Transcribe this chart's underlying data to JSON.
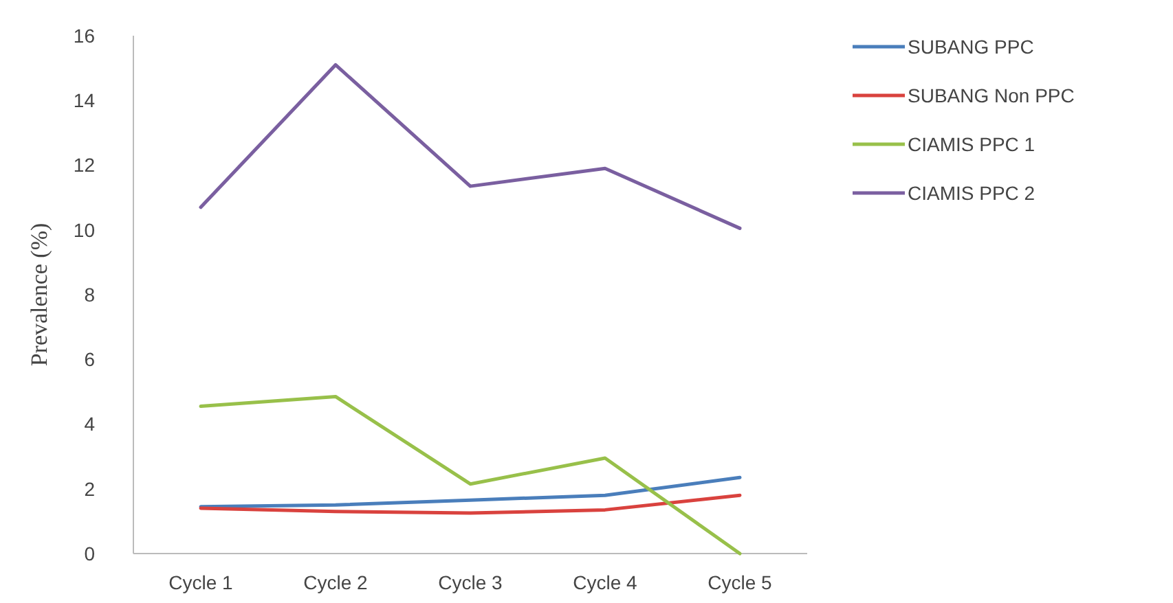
{
  "chart_data": {
    "type": "line",
    "ylabel": "Prevalence (%)",
    "categories": [
      "Cycle 1",
      "Cycle 2",
      "Cycle 3",
      "Cycle 4",
      "Cycle 5"
    ],
    "ylim": [
      0,
      16
    ],
    "yticks": [
      0,
      2,
      4,
      6,
      8,
      10,
      12,
      14,
      16
    ],
    "grid": false,
    "legend": "right",
    "marker": "none",
    "line_style": "solid",
    "series": [
      {
        "name": "SUBANG PPC",
        "color": "#4a7ebb",
        "values": [
          1.45,
          1.5,
          1.65,
          1.8,
          2.35
        ]
      },
      {
        "name": "SUBANG Non PPC",
        "color": "#d9423e",
        "values": [
          1.4,
          1.3,
          1.25,
          1.35,
          1.8
        ]
      },
      {
        "name": "CIAMIS PPC 1",
        "color": "#98c04a",
        "values": [
          4.55,
          4.85,
          2.15,
          2.95,
          0
        ]
      },
      {
        "name": "CIAMIS PPC 2",
        "color": "#7a5fa0",
        "values": [
          10.7,
          15.1,
          11.35,
          11.9,
          10.05
        ]
      }
    ]
  }
}
